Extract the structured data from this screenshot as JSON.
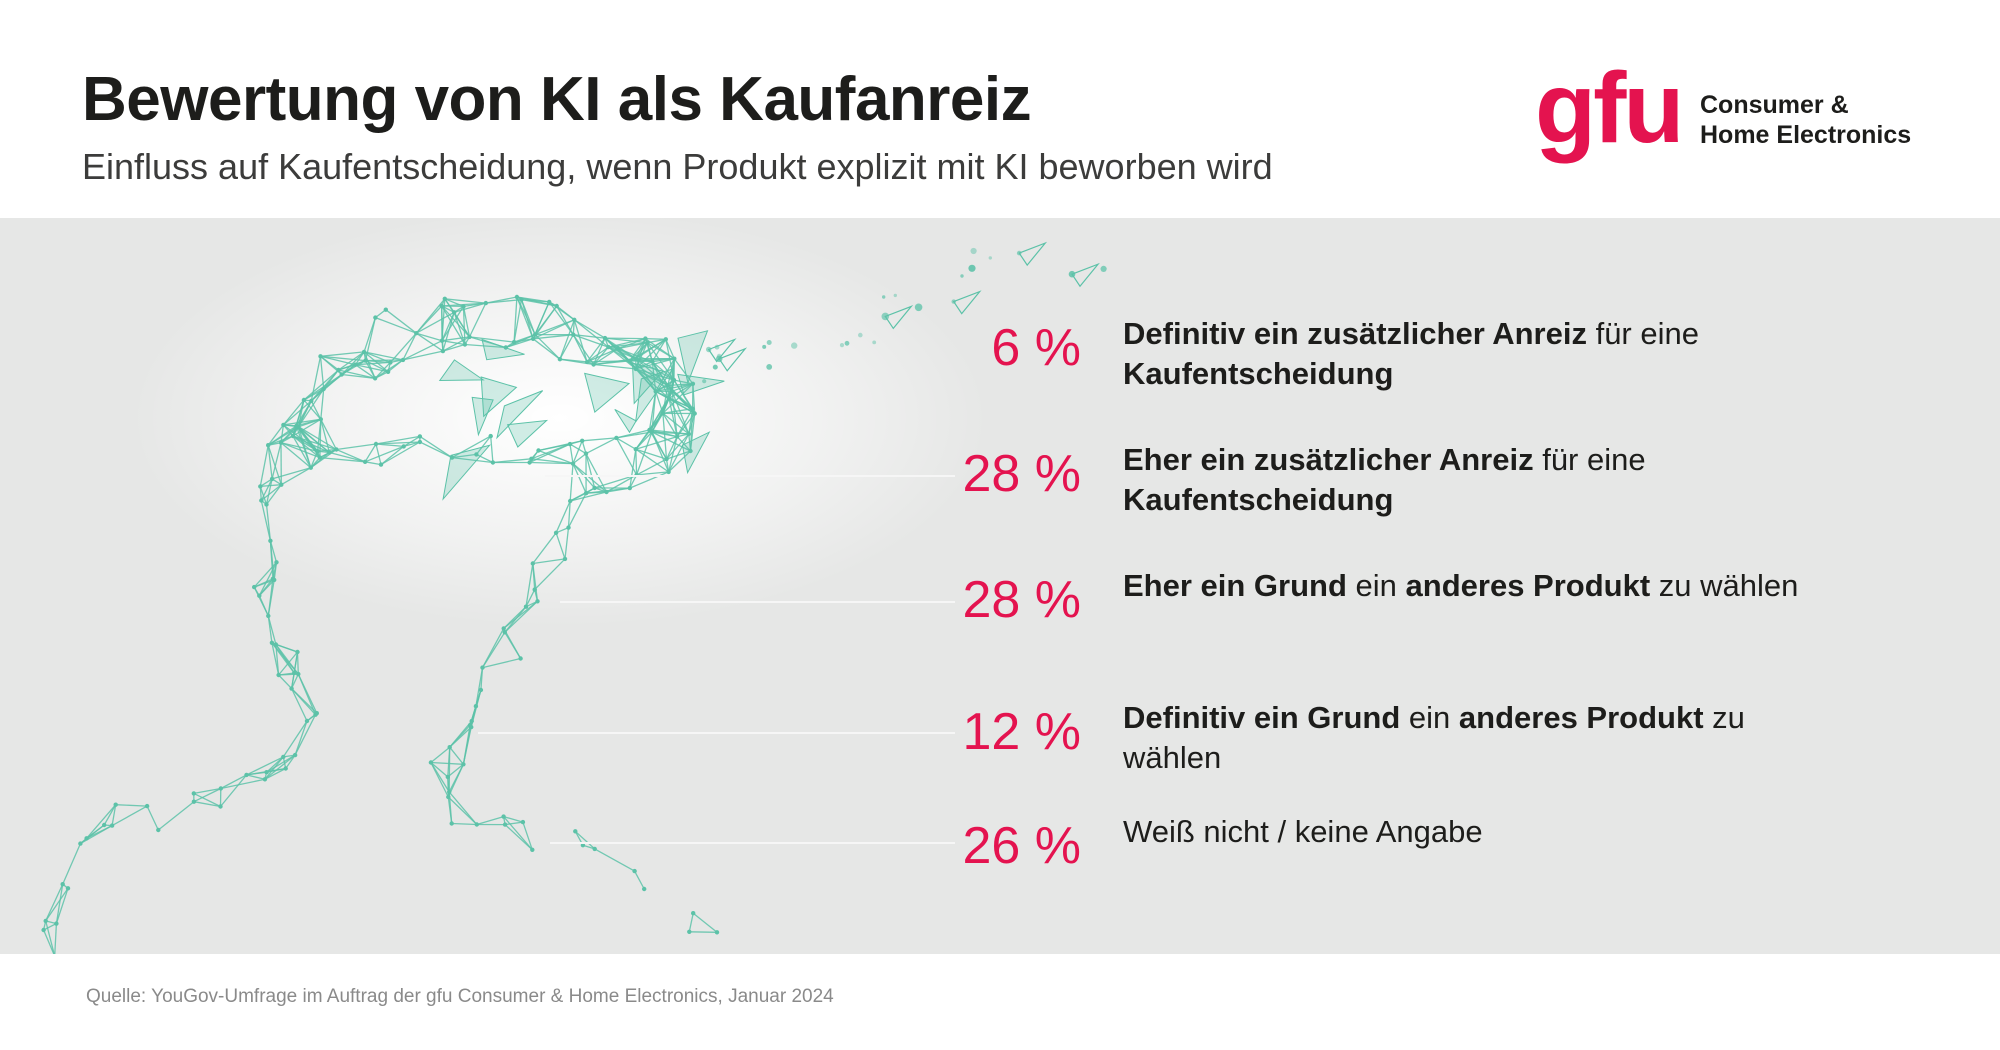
{
  "header": {
    "title": "Bewertung von KI als Kaufanreiz",
    "subtitle": "Einfluss auf Kaufentscheidung, wenn Produkt explizit mit KI beworben wird"
  },
  "logo": {
    "mark": "gfu",
    "line1": "Consumer &",
    "line2": "Home Electronics"
  },
  "colors": {
    "accent": "#e4134f",
    "panel": "#e6e7e6",
    "network": "#5cc2a8"
  },
  "chart_data": {
    "type": "table",
    "title": "Bewertung von KI als Kaufanreiz",
    "subtitle": "Einfluss auf Kaufentscheidung, wenn Produkt explizit mit KI beworben wird",
    "unit": "%",
    "items": [
      {
        "value": 6,
        "value_label": "6 %",
        "parts": [
          {
            "text": "Definitiv ein zusätzlicher Anreiz",
            "bold": true
          },
          {
            "text": " für eine ",
            "bold": false
          },
          {
            "text": "Kaufentscheidung",
            "bold": true
          }
        ]
      },
      {
        "value": 28,
        "value_label": "28 %",
        "parts": [
          {
            "text": "Eher ein zusätzlicher Anreiz",
            "bold": true
          },
          {
            "text": " für eine ",
            "bold": false
          },
          {
            "text": "Kaufentscheidung",
            "bold": true
          }
        ]
      },
      {
        "value": 28,
        "value_label": "28 %",
        "parts": [
          {
            "text": "Eher ein Grund",
            "bold": true
          },
          {
            "text": " ein ",
            "bold": false
          },
          {
            "text": "anderes Produkt",
            "bold": true
          },
          {
            "text": " zu wählen",
            "bold": false
          }
        ]
      },
      {
        "value": 12,
        "value_label": "12 %",
        "parts": [
          {
            "text": "Definitiv ein Grund",
            "bold": true
          },
          {
            "text": " ein ",
            "bold": false
          },
          {
            "text": "anderes Produkt",
            "bold": true
          },
          {
            "text": " zu wählen",
            "bold": false
          }
        ]
      },
      {
        "value": 26,
        "value_label": "26 %",
        "parts": [
          {
            "text": "Weiß nicht / keine Angabe",
            "bold": false
          }
        ]
      }
    ]
  },
  "footer": {
    "source": "Quelle:  YouGov-Umfrage im Auftrag der gfu Consumer & Home Electronics, Januar 2024"
  }
}
